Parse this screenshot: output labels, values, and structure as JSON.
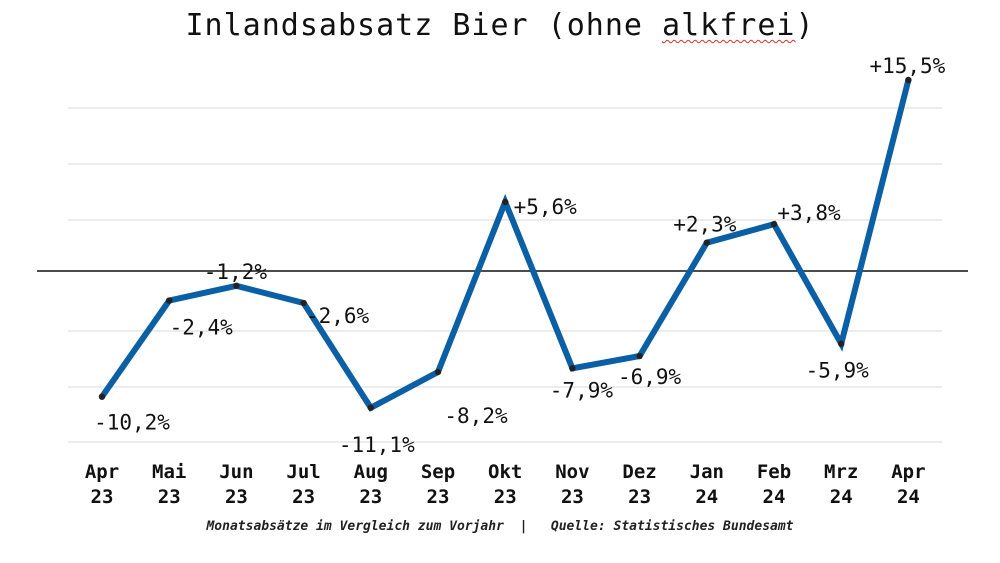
{
  "title_main": "Inlandsabsatz Bier (ohne ",
  "title_word": "alkfrei",
  "title_end": ")",
  "footer": {
    "left": "Monatsabsätze im Vergleich zum Vorjahr",
    "separator": "|",
    "right": "Quelle: Statistisches Bundesamt"
  },
  "colors": {
    "line": "#0b5fa5",
    "grid": "#d9d9d9",
    "zero": "#111111",
    "text": "#111111"
  },
  "chart_data": {
    "type": "line",
    "title": "Inlandsabsatz Bier (ohne alkfrei)",
    "categories": [
      [
        "Apr",
        "23"
      ],
      [
        "Mai",
        "23"
      ],
      [
        "Jun",
        "23"
      ],
      [
        "Jul",
        "23"
      ],
      [
        "Aug",
        "23"
      ],
      [
        "Sep",
        "23"
      ],
      [
        "Okt",
        "23"
      ],
      [
        "Nov",
        "23"
      ],
      [
        "Dez",
        "23"
      ],
      [
        "Jan",
        "24"
      ],
      [
        "Feb",
        "24"
      ],
      [
        "Mrz",
        "24"
      ],
      [
        "Apr",
        "24"
      ]
    ],
    "values": [
      -10.2,
      -2.4,
      -1.2,
      -2.6,
      -11.1,
      -8.2,
      5.6,
      -7.9,
      -6.9,
      2.3,
      3.8,
      -5.9,
      15.5
    ],
    "labels": [
      "-10,2%",
      "-2,4%",
      "-1,2%",
      "-2,6%",
      "-11,1%",
      "-8,2%",
      "+5,6%",
      "-7,9%",
      "-6,9%",
      "+2,3%",
      "+3,8%",
      "-5,9%",
      "+15,5%"
    ],
    "ylim": [
      -15,
      16
    ],
    "grid": true,
    "zero_line": true,
    "legend": "none"
  }
}
